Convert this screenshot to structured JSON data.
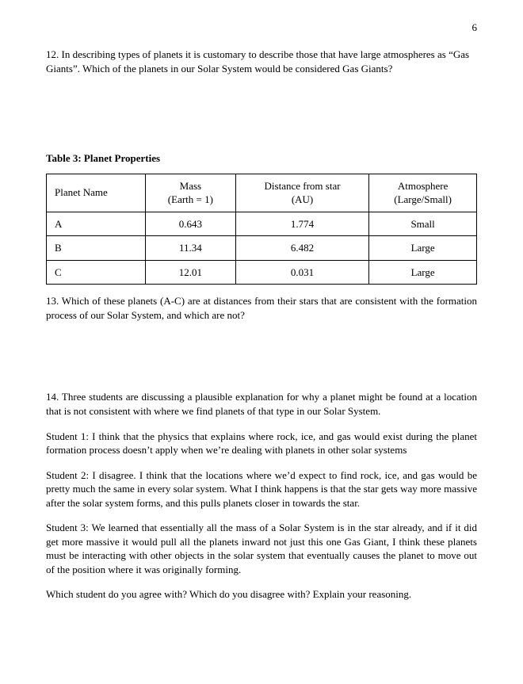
{
  "page_number": "6",
  "q12": "12. In describing types of planets it is customary to describe those that have large atmospheres as “Gas Giants”.  Which of the planets in our Solar System would be considered Gas Giants?",
  "table": {
    "title": "Table 3: Planet Properties",
    "columns": [
      {
        "line1": "Planet Name",
        "line2": "",
        "align": "left",
        "width": "23%"
      },
      {
        "line1": "Mass",
        "line2": "(Earth = 1)",
        "align": "center",
        "width": "21%"
      },
      {
        "line1": "Distance from star",
        "line2": "(AU)",
        "align": "center",
        "width": "31%"
      },
      {
        "line1": "Atmosphere",
        "line2": "(Large/Small)",
        "align": "center",
        "width": "25%"
      }
    ],
    "rows": [
      {
        "name": "A",
        "mass": "0.643",
        "dist": "1.774",
        "atmo": "Small"
      },
      {
        "name": "B",
        "mass": "11.34",
        "dist": "6.482",
        "atmo": "Large"
      },
      {
        "name": "C",
        "mass": "12.01",
        "dist": "0.031",
        "atmo": "Large"
      }
    ]
  },
  "q13": "13. Which of these planets (A-C) are at distances from their stars that are consistent with the formation process of our Solar System, and which are not?",
  "q14_intro": "14. Three students are discussing a plausible explanation for why a planet might be found at a location that is not consistent with where we find planets of that type in our Solar System.",
  "student1": "Student 1: I think that the physics that explains where rock, ice, and gas would exist during the planet formation process doesn’t apply when we’re dealing with planets in other solar systems",
  "student2": "Student 2: I disagree. I think that the locations where we’d expect to find rock, ice, and gas would be pretty much the same in every solar system. What I think happens is that the star gets way more massive after the solar system forms, and this pulls planets closer in towards the star.",
  "student3": "Student 3: We learned that essentially all the mass of a Solar System is in the star already, and if it did get more massive it would pull all the planets inward not just this one Gas Giant, I think these planets must be interacting with other objects in the solar system that eventually causes the planet to move out of the position where it was originally forming.",
  "final_q": "Which student do you agree with? Which do you disagree with? Explain your reasoning."
}
